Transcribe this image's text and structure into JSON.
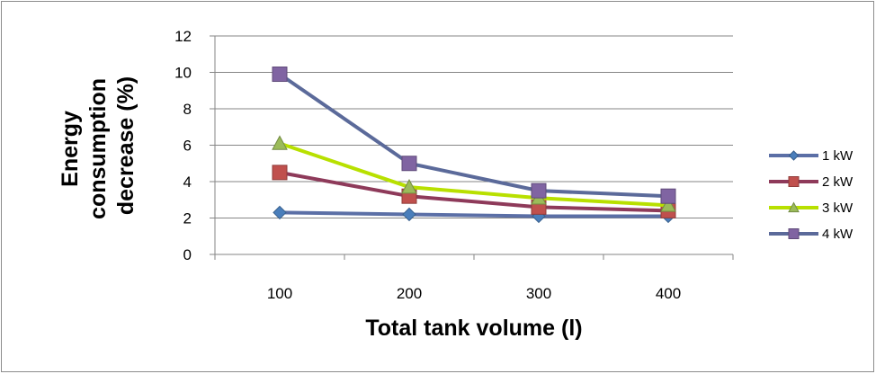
{
  "chart_data": {
    "type": "line",
    "title": "",
    "xlabel": "Total tank volume (l)",
    "ylabel_lines": [
      "Energy",
      "consumption",
      "decrease (%)"
    ],
    "categories": [
      "100",
      "200",
      "300",
      "400"
    ],
    "yticks": [
      "0",
      "2",
      "4",
      "6",
      "8",
      "10",
      "12"
    ],
    "ylim": [
      0,
      12
    ],
    "grid": "horizontal",
    "legend_position": "right",
    "series": [
      {
        "name": "1 kW",
        "values": [
          2.3,
          2.2,
          2.1,
          2.1
        ],
        "color": "#4a7ebb",
        "line_color": "#5b6fa6",
        "marker": "diamond"
      },
      {
        "name": "2 kW",
        "values": [
          4.5,
          3.2,
          2.6,
          2.4
        ],
        "color": "#c0504d",
        "line_color": "#8e3a5a",
        "marker": "square"
      },
      {
        "name": "3 kW",
        "values": [
          6.1,
          3.7,
          3.1,
          2.7
        ],
        "color": "#9bbb59",
        "line_color": "#b8e000",
        "marker": "triangle"
      },
      {
        "name": "4 kW",
        "values": [
          9.9,
          5.0,
          3.5,
          3.2
        ],
        "color": "#8064a2",
        "line_color": "#5b6a9a",
        "marker": "square"
      }
    ]
  }
}
